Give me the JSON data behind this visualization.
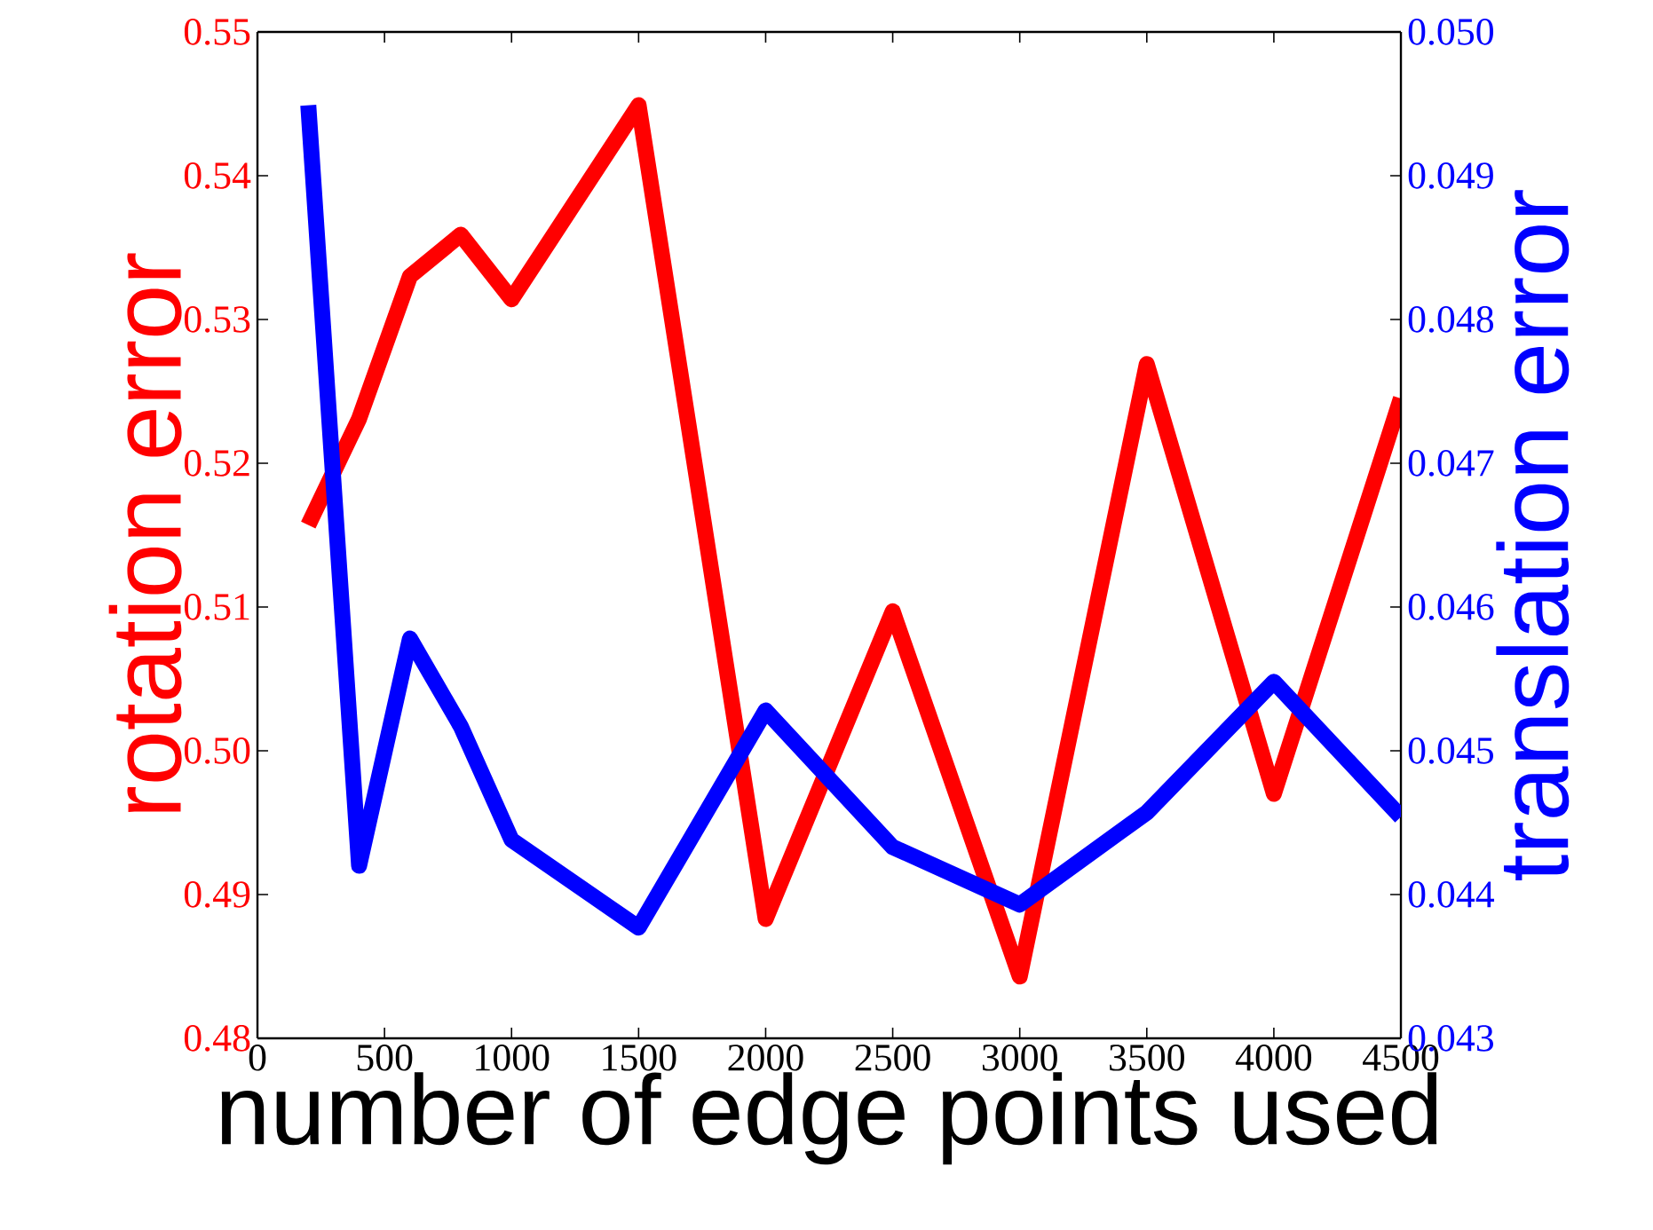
{
  "chart_data": {
    "type": "line",
    "xlabel": "number of edge points used",
    "ylabel": "rotation error",
    "y2label": "translation error",
    "x": [
      200,
      400,
      600,
      800,
      1000,
      1500,
      2000,
      2500,
      3000,
      3500,
      4000,
      4500
    ],
    "series": [
      {
        "color": "#ff0000",
        "values": [
          0.5157,
          0.5231,
          0.533,
          0.5359,
          0.5314,
          0.5449,
          0.4883,
          0.5097,
          0.4843,
          0.5269,
          0.497,
          0.5245
        ]
      },
      {
        "color": "#0000ff",
        "axis": "y2",
        "values": [
          0.04949,
          0.0442,
          0.04578,
          0.04517,
          0.04438,
          0.04377,
          0.04528,
          0.04433,
          0.04393,
          0.04457,
          0.04548,
          0.04454
        ]
      }
    ],
    "xlim": [
      0,
      4500
    ],
    "xticks": [
      0,
      500,
      1000,
      1500,
      2000,
      2500,
      3000,
      3500,
      4000,
      4500
    ],
    "ylim": [
      0.48,
      0.55
    ],
    "yticks": [
      {
        "value": 0.48,
        "label": "0.48"
      },
      {
        "value": 0.49,
        "label": "0.49"
      },
      {
        "value": 0.5,
        "label": "0.50"
      },
      {
        "value": 0.51,
        "label": "0.51"
      },
      {
        "value": 0.52,
        "label": "0.52"
      },
      {
        "value": 0.53,
        "label": "0.53"
      },
      {
        "value": 0.54,
        "label": "0.54"
      },
      {
        "value": 0.55,
        "label": "0.55"
      }
    ],
    "y2lim": [
      0.043,
      0.05
    ],
    "y2ticks": [
      {
        "value": 0.043,
        "label": "0.043"
      },
      {
        "value": 0.044,
        "label": "0.044"
      },
      {
        "value": 0.045,
        "label": "0.045"
      },
      {
        "value": 0.046,
        "label": "0.046"
      },
      {
        "value": 0.047,
        "label": "0.047"
      },
      {
        "value": 0.048,
        "label": "0.048"
      },
      {
        "value": 0.049,
        "label": "0.049"
      },
      {
        "value": 0.05,
        "label": "0.050"
      }
    ],
    "line_style": "solid"
  }
}
